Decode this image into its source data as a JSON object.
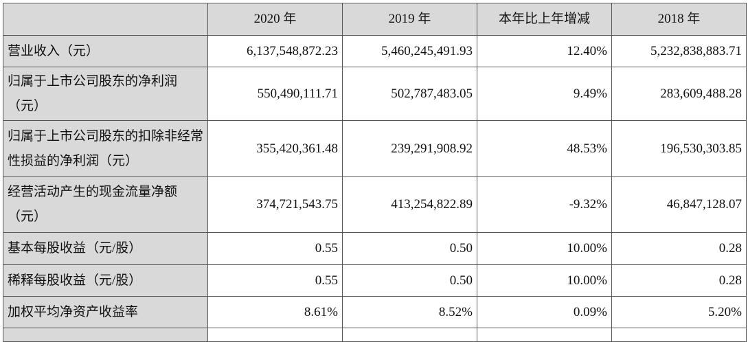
{
  "table": {
    "columns": [
      "",
      "2020 年",
      "2019 年",
      "本年比上年增减",
      "2018 年"
    ],
    "rows": [
      {
        "label": "营业收入（元）",
        "values": [
          "6,137,548,872.23",
          "5,460,245,491.93",
          "12.40%",
          "5,232,838,883.71"
        ]
      },
      {
        "label": "归属于上市公司股东的净利润（元）",
        "values": [
          "550,490,111.71",
          "502,787,483.05",
          "9.49%",
          "283,609,488.28"
        ]
      },
      {
        "label": "归属于上市公司股东的扣除非经常性损益的净利润（元）",
        "values": [
          "355,420,361.48",
          "239,291,908.92",
          "48.53%",
          "196,530,303.85"
        ]
      },
      {
        "label": "经营活动产生的现金流量净额（元）",
        "values": [
          "374,721,543.75",
          "413,254,822.89",
          "-9.32%",
          "46,847,128.07"
        ]
      },
      {
        "label": "基本每股收益（元/股）",
        "values": [
          "0.55",
          "0.50",
          "10.00%",
          "0.28"
        ]
      },
      {
        "label": "稀释每股收益（元/股）",
        "values": [
          "0.55",
          "0.50",
          "10.00%",
          "0.28"
        ]
      },
      {
        "label": "加权平均净资产收益率",
        "values": [
          "8.61%",
          "8.52%",
          "0.09%",
          "5.20%"
        ]
      }
    ]
  }
}
